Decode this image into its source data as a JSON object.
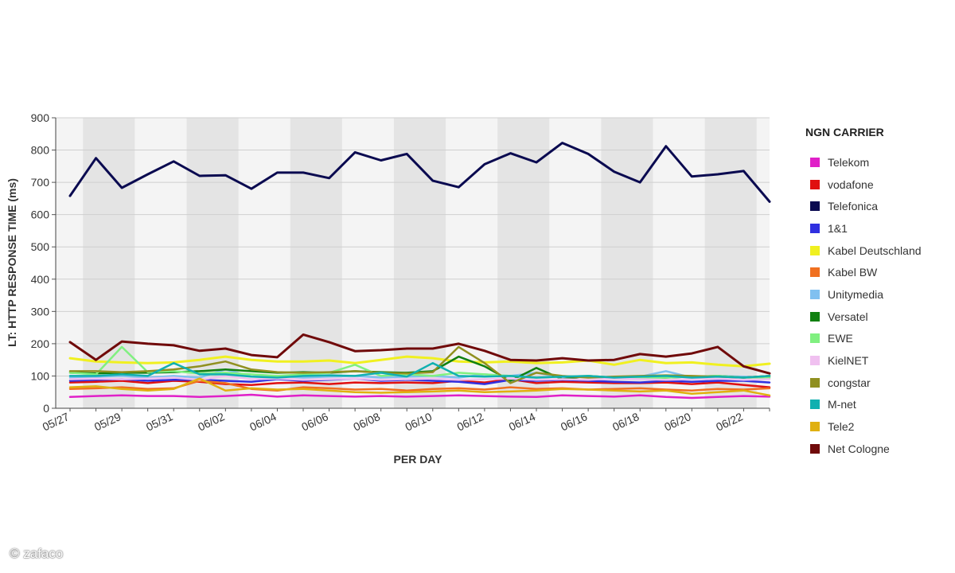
{
  "chart_data": {
    "type": "line",
    "title": "",
    "xlabel": "PER DAY",
    "ylabel": "LT: HTTP RESPONSE TIME (ms)",
    "ylim": [
      0,
      900
    ],
    "yticks": [
      0,
      100,
      200,
      300,
      400,
      500,
      600,
      700,
      800,
      900
    ],
    "x": [
      "05/27",
      "05/28",
      "05/29",
      "05/30",
      "05/31",
      "06/01",
      "06/02",
      "06/03",
      "06/04",
      "06/05",
      "06/06",
      "06/07",
      "06/08",
      "06/09",
      "06/10",
      "06/11",
      "06/12",
      "06/13",
      "06/14",
      "06/15",
      "06/16",
      "06/17",
      "06/18",
      "06/19",
      "06/20",
      "06/21",
      "06/22",
      "06/23"
    ],
    "xtick_labels": [
      "05/27",
      "05/29",
      "05/31",
      "06/02",
      "06/04",
      "06/06",
      "06/08",
      "06/10",
      "06/12",
      "06/14",
      "06/16",
      "06/18",
      "06/20",
      "06/22"
    ],
    "grid": true,
    "legend_title": "NGN CARRIER",
    "legend_position": "right",
    "series": [
      {
        "name": "Telekom",
        "color": "#e020c8",
        "values": [
          35,
          38,
          40,
          38,
          38,
          35,
          38,
          42,
          36,
          40,
          38,
          36,
          38,
          36,
          38,
          40,
          38,
          36,
          35,
          40,
          38,
          36,
          40,
          35,
          32,
          35,
          38,
          36
        ]
      },
      {
        "name": "vodafone",
        "color": "#e01010",
        "values": [
          80,
          82,
          85,
          78,
          85,
          82,
          75,
          72,
          78,
          80,
          75,
          80,
          78,
          80,
          78,
          85,
          80,
          90,
          78,
          82,
          80,
          78,
          78,
          80,
          75,
          80,
          72,
          65
        ]
      },
      {
        "name": "Telefonica",
        "color": "#0a0a50",
        "values": [
          658,
          775,
          683,
          725,
          765,
          720,
          722,
          680,
          730,
          730,
          713,
          793,
          768,
          788,
          705,
          685,
          756,
          790,
          762,
          822,
          788,
          733,
          700,
          812,
          718,
          725,
          735,
          640
        ]
      },
      {
        "name": "1&1",
        "color": "#3030e0",
        "values": [
          85,
          88,
          90,
          85,
          88,
          88,
          85,
          82,
          90,
          85,
          88,
          92,
          85,
          88,
          85,
          82,
          75,
          88,
          85,
          88,
          85,
          82,
          80,
          85,
          82,
          85,
          85,
          80
        ]
      },
      {
        "name": "Kabel Deutschland",
        "color": "#f0f020",
        "values": [
          155,
          145,
          142,
          140,
          142,
          150,
          160,
          150,
          145,
          145,
          148,
          140,
          150,
          160,
          155,
          145,
          142,
          145,
          140,
          142,
          148,
          135,
          150,
          140,
          142,
          135,
          130,
          138
        ]
      },
      {
        "name": "Kabel BW",
        "color": "#f07020",
        "values": [
          60,
          62,
          65,
          60,
          62,
          85,
          78,
          60,
          55,
          65,
          62,
          58,
          60,
          55,
          60,
          62,
          58,
          65,
          60,
          62,
          58,
          60,
          62,
          58,
          55,
          60,
          58,
          62
        ]
      },
      {
        "name": "Unitymedia",
        "color": "#80c0f0",
        "values": [
          95,
          98,
          100,
          95,
          100,
          95,
          120,
          98,
          100,
          95,
          98,
          100,
          95,
          98,
          100,
          95,
          105,
          100,
          110,
          95,
          100,
          92,
          98,
          115,
          95,
          100,
          98,
          95
        ]
      },
      {
        "name": "Versatel",
        "color": "#108010",
        "values": [
          110,
          108,
          110,
          110,
          112,
          115,
          120,
          115,
          110,
          112,
          110,
          115,
          112,
          110,
          115,
          160,
          130,
          85,
          125,
          90,
          100,
          95,
          92,
          95,
          98,
          100,
          95,
          100
        ]
      },
      {
        "name": "EWE",
        "color": "#80f080",
        "values": [
          110,
          105,
          190,
          112,
          115,
          108,
          110,
          105,
          100,
          105,
          110,
          135,
          100,
          105,
          100,
          110,
          105,
          100,
          95,
          98,
          100,
          95,
          92,
          95,
          98,
          100,
          95,
          95
        ]
      },
      {
        "name": "KielNET",
        "color": "#f0c0f0",
        "values": [
          90,
          92,
          90,
          92,
          95,
          88,
          100,
          90,
          92,
          88,
          90,
          92,
          88,
          90,
          92,
          88,
          90,
          92,
          88,
          90,
          88,
          92,
          90,
          88,
          90,
          92,
          88,
          90
        ]
      },
      {
        "name": "congstar",
        "color": "#909020",
        "values": [
          115,
          115,
          112,
          115,
          120,
          130,
          145,
          120,
          112,
          110,
          112,
          115,
          110,
          108,
          112,
          190,
          140,
          78,
          110,
          100,
          95,
          98,
          100,
          102,
          100,
          98,
          95,
          100
        ]
      },
      {
        "name": "M-net",
        "color": "#10b0b0",
        "values": [
          100,
          100,
          105,
          100,
          140,
          105,
          105,
          98,
          95,
          100,
          102,
          100,
          110,
          98,
          140,
          100,
          98,
          100,
          95,
          98,
          100,
          95,
          98,
          100,
          95,
          98,
          95,
          100
        ]
      },
      {
        "name": "Tele2",
        "color": "#e0b010",
        "values": [
          65,
          68,
          60,
          55,
          60,
          92,
          55,
          62,
          58,
          60,
          55,
          50,
          48,
          50,
          52,
          55,
          50,
          52,
          55,
          60,
          58,
          55,
          52,
          55,
          45,
          50,
          55,
          40
        ]
      },
      {
        "name": "Net Cologne",
        "color": "#700a0a",
        "values": [
          205,
          150,
          207,
          200,
          195,
          178,
          185,
          165,
          158,
          228,
          205,
          177,
          180,
          185,
          185,
          200,
          178,
          150,
          148,
          155,
          148,
          150,
          168,
          160,
          170,
          190,
          130,
          108
        ]
      }
    ]
  },
  "watermark": "© zafaco"
}
